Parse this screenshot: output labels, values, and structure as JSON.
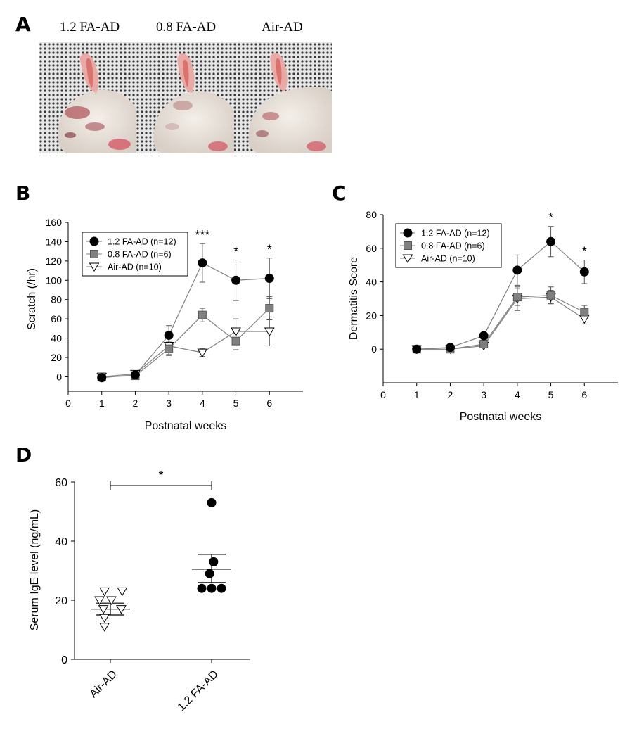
{
  "panels": {
    "A": "A",
    "B": "B",
    "C": "C",
    "D": "D"
  },
  "photos": {
    "labels": [
      "1.2 FA-AD",
      "0.8 FA-AD",
      "Air-AD"
    ]
  },
  "colors": {
    "fa12": "#000000",
    "fa08": "#808080",
    "air": "#ffffff",
    "line": "#808080"
  },
  "chart_data": [
    {
      "id": "B",
      "type": "line",
      "title": "",
      "xlabel": "Postnatal weeks",
      "ylabel": "Scratch (/hr)",
      "xlim": [
        0,
        7
      ],
      "ylim": [
        -15,
        160
      ],
      "xticks": [
        0,
        1,
        2,
        3,
        4,
        5,
        6
      ],
      "yticks": [
        0,
        20,
        40,
        60,
        80,
        100,
        120,
        140,
        160
      ],
      "x": [
        1,
        2,
        3,
        4,
        5,
        6
      ],
      "series": [
        {
          "name": "1.2 FA-AD (n=12)",
          "marker": "circle",
          "values": [
            -1,
            2,
            43,
            118,
            100,
            102
          ],
          "errors": [
            0,
            0,
            10,
            20,
            21,
            21
          ]
        },
        {
          "name": "0.8 FA-AD (n=6)",
          "marker": "square",
          "values": [
            0,
            1,
            29,
            64,
            37,
            71
          ],
          "errors": [
            0,
            0,
            7,
            7,
            9,
            12
          ]
        },
        {
          "name": "Air-AD (n=10)",
          "marker": "triangle-down",
          "values": [
            0,
            3,
            32,
            25,
            47,
            47
          ],
          "errors": [
            0,
            0,
            9,
            4,
            13,
            15
          ]
        }
      ],
      "annotations": [
        {
          "x": 4,
          "text": "***"
        },
        {
          "x": 5,
          "text": "*"
        },
        {
          "x": 6,
          "text": "*"
        }
      ]
    },
    {
      "id": "C",
      "type": "line",
      "title": "",
      "xlabel": "Postnatal weeks",
      "ylabel": "Dermatitis Score",
      "xlim": [
        0,
        7
      ],
      "ylim": [
        -20,
        80
      ],
      "xticks": [
        0,
        1,
        2,
        3,
        4,
        5,
        6
      ],
      "yticks": [
        0,
        20,
        40,
        60,
        80
      ],
      "x": [
        1,
        2,
        3,
        4,
        5,
        6
      ],
      "series": [
        {
          "name": "1.2 FA-AD (n=12)",
          "marker": "circle",
          "values": [
            0,
            1,
            8,
            47,
            64,
            46
          ],
          "errors": [
            0,
            0,
            0,
            9,
            9,
            7
          ]
        },
        {
          "name": "0.8 FA-AD (n=6)",
          "marker": "square",
          "values": [
            0,
            0,
            3,
            31,
            32,
            22
          ],
          "errors": [
            0,
            0,
            0,
            5,
            5,
            4
          ]
        },
        {
          "name": "Air-AD (n=10)",
          "marker": "triangle-down",
          "values": [
            0,
            0,
            2,
            30,
            31,
            18
          ],
          "errors": [
            0,
            0,
            0,
            7,
            4,
            3
          ]
        }
      ],
      "annotations": [
        {
          "x": 5,
          "text": "*"
        },
        {
          "x": 6,
          "text": "*"
        }
      ]
    },
    {
      "id": "D",
      "type": "scatter",
      "title": "",
      "xlabel": "",
      "ylabel": "Serum IgE level (ng/mL)",
      "ylim": [
        0,
        60
      ],
      "yticks": [
        0,
        20,
        40,
        60
      ],
      "categories": [
        "Air-AD",
        "1.2 FA-AD"
      ],
      "groups": [
        {
          "name": "Air-AD",
          "marker": "triangle-down",
          "points": [
            {
              "dx": -0.3,
              "y": 23
            },
            {
              "dx": 0.6,
              "y": 23
            },
            {
              "dx": -0.55,
              "y": 20
            },
            {
              "dx": 0.05,
              "y": 20
            },
            {
              "dx": -0.35,
              "y": 17
            },
            {
              "dx": 0.55,
              "y": 17
            },
            {
              "dx": -0.3,
              "y": 14
            },
            {
              "dx": -0.3,
              "y": 11
            }
          ],
          "mean": 17,
          "sem_low": 15,
          "sem_high": 19
        },
        {
          "name": "1.2 FA-AD",
          "marker": "circle",
          "points": [
            {
              "dx": 0.0,
              "y": 53
            },
            {
              "dx": 0.1,
              "y": 33
            },
            {
              "dx": -0.1,
              "y": 29
            },
            {
              "dx": -0.5,
              "y": 24
            },
            {
              "dx": 0.0,
              "y": 24
            },
            {
              "dx": 0.5,
              "y": 24
            }
          ],
          "mean": 30.5,
          "sem_low": 26,
          "sem_high": 35.5
        }
      ],
      "significance": {
        "text": "*",
        "from": "Air-AD",
        "to": "1.2 FA-AD"
      }
    }
  ]
}
